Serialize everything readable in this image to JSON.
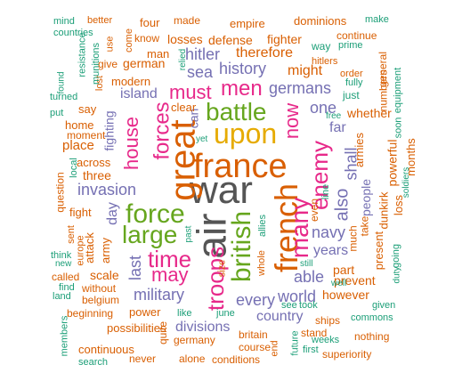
{
  "cloud": {
    "palette": {
      "c1": "#1b9e77",
      "c2": "#d95f02",
      "c3": "#7570b3",
      "c4": "#e7298a",
      "c5": "#66a61e",
      "c6": "#e6ab02",
      "c8": "#555555"
    },
    "words": [
      {
        "text": "war",
        "color": "c8"
      },
      {
        "text": "air",
        "color": "c8"
      },
      {
        "text": "france",
        "color": "c2"
      },
      {
        "text": "french",
        "color": "c2"
      },
      {
        "text": "great",
        "color": "c2"
      },
      {
        "text": "upon",
        "color": "c6"
      },
      {
        "text": "battle",
        "color": "c5"
      },
      {
        "text": "force",
        "color": "c5"
      },
      {
        "text": "large",
        "color": "c5"
      },
      {
        "text": "british",
        "color": "c5"
      },
      {
        "text": "many",
        "color": "c4"
      },
      {
        "text": "enemy",
        "color": "c4"
      },
      {
        "text": "men",
        "color": "c4"
      },
      {
        "text": "must",
        "color": "c4"
      },
      {
        "text": "forces",
        "color": "c4"
      },
      {
        "text": "house",
        "color": "c4"
      },
      {
        "text": "time",
        "color": "c4"
      },
      {
        "text": "troops",
        "color": "c4"
      },
      {
        "text": "may",
        "color": "c4"
      },
      {
        "text": "now",
        "color": "c4"
      },
      {
        "text": "history",
        "color": "c3"
      },
      {
        "text": "sea",
        "color": "c3"
      },
      {
        "text": "germans",
        "color": "c3"
      },
      {
        "text": "hitler",
        "color": "c3"
      },
      {
        "text": "navy",
        "color": "c3"
      },
      {
        "text": "also",
        "color": "c3"
      },
      {
        "text": "shall",
        "color": "c3"
      },
      {
        "text": "invasion",
        "color": "c3"
      },
      {
        "text": "military",
        "color": "c3"
      },
      {
        "text": "every",
        "color": "c3"
      },
      {
        "text": "world",
        "color": "c3"
      },
      {
        "text": "able",
        "color": "c3"
      },
      {
        "text": "one",
        "color": "c3"
      },
      {
        "text": "years",
        "color": "c3"
      },
      {
        "text": "last",
        "color": "c3"
      },
      {
        "text": "country",
        "color": "c3"
      },
      {
        "text": "divisions",
        "color": "c3"
      },
      {
        "text": "can",
        "color": "c3"
      },
      {
        "text": "fighting",
        "color": "c3"
      },
      {
        "text": "island",
        "color": "c3"
      },
      {
        "text": "day",
        "color": "c3"
      },
      {
        "text": "people",
        "color": "c3"
      },
      {
        "text": "far",
        "color": "c3"
      },
      {
        "text": "therefore",
        "color": "c2"
      },
      {
        "text": "might",
        "color": "c2"
      },
      {
        "text": "german",
        "color": "c2"
      },
      {
        "text": "defense",
        "color": "c2"
      },
      {
        "text": "losses",
        "color": "c2"
      },
      {
        "text": "fighter",
        "color": "c2"
      },
      {
        "text": "empire",
        "color": "c2"
      },
      {
        "text": "dominions",
        "color": "c2"
      },
      {
        "text": "continue",
        "color": "c2"
      },
      {
        "text": "made",
        "color": "c2"
      },
      {
        "text": "four",
        "color": "c2"
      },
      {
        "text": "know",
        "color": "c2"
      },
      {
        "text": "man",
        "color": "c2"
      },
      {
        "text": "give",
        "color": "c2"
      },
      {
        "text": "modern",
        "color": "c2"
      },
      {
        "text": "hitlers",
        "color": "c2"
      },
      {
        "text": "order",
        "color": "c2"
      },
      {
        "text": "general",
        "color": "c2"
      },
      {
        "text": "numbers",
        "color": "c2"
      },
      {
        "text": "whether",
        "color": "c2"
      },
      {
        "text": "armies",
        "color": "c2"
      },
      {
        "text": "powerful",
        "color": "c2"
      },
      {
        "text": "months",
        "color": "c2"
      },
      {
        "text": "dunkirk",
        "color": "c2"
      },
      {
        "text": "loss",
        "color": "c2"
      },
      {
        "text": "present",
        "color": "c2"
      },
      {
        "text": "take",
        "color": "c2"
      },
      {
        "text": "much",
        "color": "c2"
      },
      {
        "text": "even",
        "color": "c2"
      },
      {
        "text": "part",
        "color": "c2"
      },
      {
        "text": "prevent",
        "color": "c2"
      },
      {
        "text": "however",
        "color": "c2"
      },
      {
        "text": "ships",
        "color": "c2"
      },
      {
        "text": "nothing",
        "color": "c2"
      },
      {
        "text": "superiority",
        "color": "c2"
      },
      {
        "text": "stand",
        "color": "c2"
      },
      {
        "text": "britain",
        "color": "c2"
      },
      {
        "text": "course",
        "color": "c2"
      },
      {
        "text": "conditions",
        "color": "c2"
      },
      {
        "text": "alone",
        "color": "c2"
      },
      {
        "text": "germany",
        "color": "c2"
      },
      {
        "text": "never",
        "color": "c2"
      },
      {
        "text": "quite",
        "color": "c2"
      },
      {
        "text": "possibilities",
        "color": "c2"
      },
      {
        "text": "continuous",
        "color": "c2"
      },
      {
        "text": "power",
        "color": "c2"
      },
      {
        "text": "beginning",
        "color": "c2"
      },
      {
        "text": "without",
        "color": "c2"
      },
      {
        "text": "belgium",
        "color": "c2"
      },
      {
        "text": "scale",
        "color": "c2"
      },
      {
        "text": "army",
        "color": "c2"
      },
      {
        "text": "attack",
        "color": "c2"
      },
      {
        "text": "called",
        "color": "c2"
      },
      {
        "text": "fight",
        "color": "c2"
      },
      {
        "text": "question",
        "color": "c2"
      },
      {
        "text": "sent",
        "color": "c2"
      },
      {
        "text": "europe",
        "color": "c2"
      },
      {
        "text": "three",
        "color": "c2"
      },
      {
        "text": "across",
        "color": "c2"
      },
      {
        "text": "place",
        "color": "c2"
      },
      {
        "text": "home",
        "color": "c2"
      },
      {
        "text": "moment",
        "color": "c2"
      },
      {
        "text": "say",
        "color": "c2"
      },
      {
        "text": "lost",
        "color": "c2"
      },
      {
        "text": "come",
        "color": "c2"
      },
      {
        "text": "use",
        "color": "c2"
      },
      {
        "text": "better",
        "color": "c2"
      },
      {
        "text": "clear",
        "color": "c2"
      },
      {
        "text": "size",
        "color": "c2"
      },
      {
        "text": "end",
        "color": "c2"
      },
      {
        "text": "whole",
        "color": "c2"
      },
      {
        "text": "mind",
        "color": "c1"
      },
      {
        "text": "countries",
        "color": "c1"
      },
      {
        "text": "resistance",
        "color": "c1"
      },
      {
        "text": "munitions",
        "color": "c1"
      },
      {
        "text": "found",
        "color": "c1"
      },
      {
        "text": "turned",
        "color": "c1"
      },
      {
        "text": "put",
        "color": "c1"
      },
      {
        "text": "relied",
        "color": "c1"
      },
      {
        "text": "make",
        "color": "c1"
      },
      {
        "text": "way",
        "color": "c1"
      },
      {
        "text": "prime",
        "color": "c1"
      },
      {
        "text": "fully",
        "color": "c1"
      },
      {
        "text": "just",
        "color": "c1"
      },
      {
        "text": "equipment",
        "color": "c1"
      },
      {
        "text": "free",
        "color": "c1"
      },
      {
        "text": "soon",
        "color": "c1"
      },
      {
        "text": "soldiers",
        "color": "c1"
      },
      {
        "text": "going",
        "color": "c1"
      },
      {
        "text": "duty",
        "color": "c1"
      },
      {
        "text": "given",
        "color": "c1"
      },
      {
        "text": "commons",
        "color": "c1"
      },
      {
        "text": "first",
        "color": "c1"
      },
      {
        "text": "weeks",
        "color": "c1"
      },
      {
        "text": "took",
        "color": "c1"
      },
      {
        "text": "still",
        "color": "c1"
      },
      {
        "text": "well",
        "color": "c1"
      },
      {
        "text": "see",
        "color": "c1"
      },
      {
        "text": "future",
        "color": "c1"
      },
      {
        "text": "june",
        "color": "c1"
      },
      {
        "text": "like",
        "color": "c1"
      },
      {
        "text": "past",
        "color": "c1"
      },
      {
        "text": "yet",
        "color": "c1"
      },
      {
        "text": "allies",
        "color": "c1"
      },
      {
        "text": "line",
        "color": "c1"
      },
      {
        "text": "local",
        "color": "c1"
      },
      {
        "text": "think",
        "color": "c1"
      },
      {
        "text": "new",
        "color": "c1"
      },
      {
        "text": "find",
        "color": "c1"
      },
      {
        "text": "land",
        "color": "c1"
      },
      {
        "text": "members",
        "color": "c1"
      },
      {
        "text": "search",
        "color": "c1"
      }
    ]
  }
}
